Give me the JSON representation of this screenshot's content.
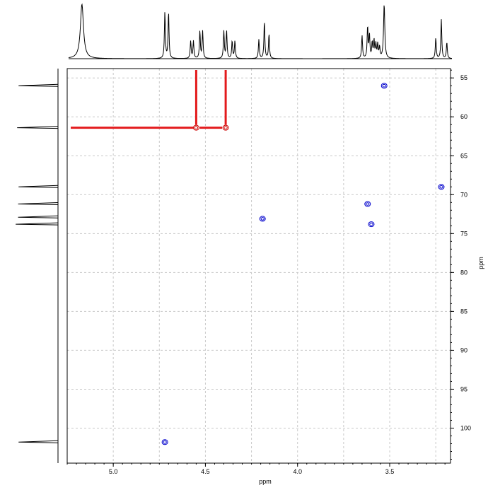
{
  "chart_data": {
    "type": "scatter",
    "subtype": "2D NMR HSQC contour plot with 1D projections",
    "title": "",
    "xlabel": "ppm",
    "ylabel": "ppm",
    "x_axis": {
      "reversed": true,
      "range": [
        5.25,
        3.17
      ],
      "ticks": [
        5.0,
        4.5,
        4.0,
        3.5
      ],
      "tick_labels": [
        "5.0",
        "4.5",
        "4.0",
        "3.5"
      ],
      "grid_step": 0.25
    },
    "y_axis": {
      "reversed": true,
      "position": "right",
      "range": [
        53.8,
        104.5
      ],
      "ticks": [
        55,
        60,
        65,
        70,
        75,
        80,
        85,
        90,
        95,
        100
      ],
      "tick_labels": [
        "55",
        "60",
        "65",
        "70",
        "75",
        "80",
        "85",
        "90",
        "95",
        "100"
      ],
      "grid_step": 5
    },
    "grid": true,
    "grid_style": "dashed",
    "series": [
      {
        "color": "#0000cc",
        "points": [
          {
            "x": 3.53,
            "y": 56.0
          },
          {
            "x": 3.22,
            "y": 69.0
          },
          {
            "x": 3.62,
            "y": 71.2
          },
          {
            "x": 3.6,
            "y": 73.8
          },
          {
            "x": 4.19,
            "y": 73.1
          },
          {
            "x": 4.72,
            "y": 101.8
          }
        ]
      },
      {
        "color": "#cc0000",
        "points": [
          {
            "x": 4.55,
            "y": 61.4
          },
          {
            "x": 4.39,
            "y": 61.4
          }
        ]
      }
    ],
    "annotations": [
      {
        "type": "vertical-marker",
        "x": 4.55,
        "color": "#e31a1c"
      },
      {
        "type": "vertical-marker",
        "x": 4.39,
        "color": "#e31a1c"
      },
      {
        "type": "horizontal-marker",
        "y": 61.4,
        "color": "#e31a1c"
      }
    ],
    "f2_projection": {
      "peaks": [
        {
          "x": 5.17,
          "h": 1.0,
          "w": 0.01
        },
        {
          "x": 4.72,
          "h": 0.85,
          "w": 0.003
        },
        {
          "x": 4.7,
          "h": 0.85,
          "w": 0.003
        },
        {
          "x": 4.58,
          "h": 0.32,
          "w": 0.003
        },
        {
          "x": 4.565,
          "h": 0.32,
          "w": 0.003
        },
        {
          "x": 4.53,
          "h": 0.5,
          "w": 0.003
        },
        {
          "x": 4.515,
          "h": 0.5,
          "w": 0.003
        },
        {
          "x": 4.4,
          "h": 0.5,
          "w": 0.003
        },
        {
          "x": 4.385,
          "h": 0.5,
          "w": 0.003
        },
        {
          "x": 4.355,
          "h": 0.32,
          "w": 0.003
        },
        {
          "x": 4.34,
          "h": 0.32,
          "w": 0.003
        },
        {
          "x": 4.21,
          "h": 0.35,
          "w": 0.003
        },
        {
          "x": 4.18,
          "h": 0.68,
          "w": 0.003
        },
        {
          "x": 4.155,
          "h": 0.45,
          "w": 0.003
        },
        {
          "x": 3.65,
          "h": 0.42,
          "w": 0.003
        },
        {
          "x": 3.62,
          "h": 0.58,
          "w": 0.003
        },
        {
          "x": 3.61,
          "h": 0.42,
          "w": 0.003
        },
        {
          "x": 3.595,
          "h": 0.28,
          "w": 0.003
        },
        {
          "x": 3.585,
          "h": 0.32,
          "w": 0.003
        },
        {
          "x": 3.575,
          "h": 0.25,
          "w": 0.003
        },
        {
          "x": 3.565,
          "h": 0.25,
          "w": 0.003
        },
        {
          "x": 3.555,
          "h": 0.2,
          "w": 0.003
        },
        {
          "x": 3.53,
          "h": 1.0,
          "w": 0.004
        },
        {
          "x": 3.25,
          "h": 0.38,
          "w": 0.003
        },
        {
          "x": 3.22,
          "h": 0.72,
          "w": 0.003
        },
        {
          "x": 3.19,
          "h": 0.3,
          "w": 0.003
        }
      ]
    },
    "f1_projection": {
      "peaks": [
        {
          "y": 56.0,
          "h": 0.82
        },
        {
          "y": 61.4,
          "h": 0.85
        },
        {
          "y": 69.0,
          "h": 0.82
        },
        {
          "y": 71.2,
          "h": 0.83
        },
        {
          "y": 72.9,
          "h": 0.83
        },
        {
          "y": 73.8,
          "h": 0.88
        },
        {
          "y": 101.8,
          "h": 0.82
        }
      ]
    }
  }
}
